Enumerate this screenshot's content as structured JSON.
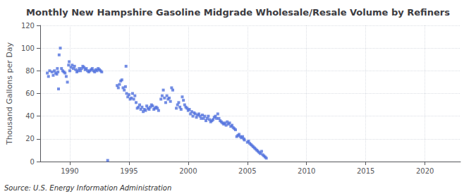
{
  "chart_data": {
    "type": "scatter",
    "title": "Monthly New Hampshire Gasoline Midgrade Wholesale/Resale Volume by Refiners",
    "ylabel": "Thousand Gallons per Day",
    "annotations": [
      "Source: U.S. Energy Information Administration"
    ],
    "marker": "square",
    "grid": true,
    "xlim": [
      1987.5,
      2023
    ],
    "xticks": [
      1990,
      1995,
      2000,
      2005,
      2010,
      2015,
      2020
    ],
    "ylim": [
      0,
      120
    ],
    "yticks": [
      0,
      20,
      40,
      60,
      80,
      100,
      120
    ],
    "x": [
      1988.1,
      1988.2,
      1988.3,
      1988.5,
      1988.6,
      1988.7,
      1988.8,
      1988.9,
      1988.95,
      1989.0,
      1989.05,
      1989.1,
      1989.2,
      1989.3,
      1989.4,
      1989.5,
      1989.6,
      1989.7,
      1989.8,
      1989.9,
      1989.95,
      1990.0,
      1990.1,
      1990.2,
      1990.3,
      1990.4,
      1990.5,
      1990.6,
      1990.7,
      1990.8,
      1990.9,
      1991.0,
      1991.1,
      1991.2,
      1991.3,
      1991.4,
      1991.5,
      1991.6,
      1991.7,
      1991.8,
      1991.9,
      1992.0,
      1992.1,
      1992.2,
      1992.3,
      1992.4,
      1992.5,
      1992.6,
      1992.7,
      1993.2,
      1994.0,
      1994.1,
      1994.2,
      1994.3,
      1994.4,
      1994.5,
      1994.6,
      1994.7,
      1994.75,
      1994.8,
      1994.9,
      1995.0,
      1995.1,
      1995.2,
      1995.3,
      1995.4,
      1995.5,
      1995.6,
      1995.7,
      1995.8,
      1995.9,
      1996.0,
      1996.1,
      1996.2,
      1996.3,
      1996.4,
      1996.5,
      1996.6,
      1996.7,
      1996.8,
      1996.9,
      1997.0,
      1997.1,
      1997.2,
      1997.3,
      1997.4,
      1997.5,
      1997.7,
      1997.8,
      1997.9,
      1998.0,
      1998.1,
      1998.2,
      1998.3,
      1998.4,
      1998.5,
      1998.6,
      1998.7,
      1999.0,
      1999.1,
      1999.2,
      1999.3,
      1999.4,
      1999.5,
      1999.6,
      1999.7,
      1999.8,
      1999.9,
      2000.0,
      2000.1,
      2000.2,
      2000.3,
      2000.4,
      2000.5,
      2000.6,
      2000.7,
      2000.8,
      2000.9,
      2001.0,
      2001.1,
      2001.2,
      2001.3,
      2001.4,
      2001.5,
      2001.6,
      2001.7,
      2001.8,
      2001.9,
      2002.0,
      2002.1,
      2002.2,
      2002.3,
      2002.4,
      2002.5,
      2002.6,
      2002.7,
      2002.8,
      2002.9,
      2003.0,
      2003.1,
      2003.2,
      2003.3,
      2003.4,
      2003.5,
      2003.6,
      2003.7,
      2003.8,
      2003.9,
      2004.0,
      2004.1,
      2004.2,
      2004.3,
      2004.4,
      2004.5,
      2004.6,
      2004.7,
      2004.75,
      2005.0,
      2005.1,
      2005.2,
      2005.3,
      2005.4,
      2005.5,
      2005.6,
      2005.7,
      2005.8,
      2005.9,
      2006.0,
      2006.1,
      2006.2,
      2006.3,
      2006.4,
      2006.5,
      2006.6
    ],
    "values": [
      78,
      75,
      80,
      79,
      76,
      80,
      78,
      77,
      82,
      79,
      64,
      94,
      100,
      82,
      80,
      79,
      78,
      75,
      70,
      85,
      88,
      80,
      83,
      85,
      82,
      84,
      81,
      79,
      80,
      82,
      80,
      82,
      84,
      83,
      81,
      82,
      80,
      79,
      80,
      81,
      82,
      80,
      79,
      81,
      80,
      82,
      81,
      80,
      79,
      1,
      67,
      65,
      68,
      71,
      72,
      65,
      63,
      66,
      84,
      60,
      57,
      59,
      55,
      56,
      60,
      55,
      58,
      52,
      47,
      48,
      50,
      46,
      48,
      44,
      46,
      45,
      49,
      47,
      46,
      48,
      50,
      49,
      46,
      47,
      48,
      47,
      45,
      55,
      58,
      63,
      56,
      52,
      58,
      55,
      56,
      53,
      65,
      63,
      47,
      50,
      52,
      48,
      46,
      57,
      54,
      50,
      48,
      47,
      45,
      46,
      42,
      44,
      40,
      43,
      42,
      39,
      41,
      42,
      40,
      38,
      41,
      38,
      40,
      36,
      38,
      40,
      37,
      35,
      36,
      37,
      39,
      40,
      38,
      42,
      38,
      36,
      35,
      34,
      33,
      34,
      32,
      35,
      33,
      34,
      31,
      32,
      30,
      29,
      28,
      22,
      23,
      24,
      22,
      21,
      22,
      20,
      19,
      17,
      18,
      16,
      15,
      14,
      13,
      12,
      11,
      10,
      9,
      8,
      7,
      9,
      6,
      5,
      4,
      3
    ]
  }
}
